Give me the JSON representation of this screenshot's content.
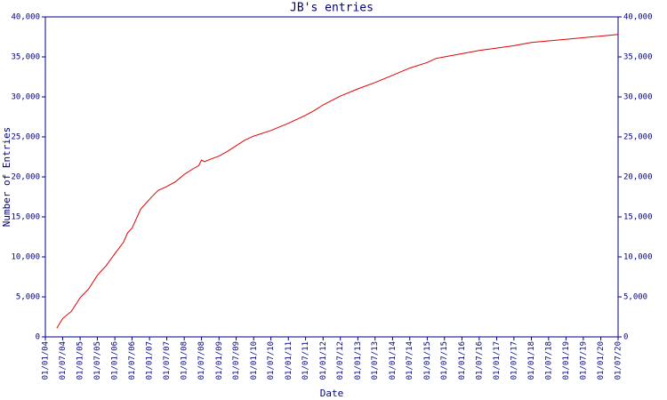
{
  "chart_data": {
    "type": "line",
    "title": "JB's entries",
    "xlabel": "Date",
    "ylabel": "Number of Entries",
    "axis_color": "#000080",
    "series": [
      {
        "name": "JB's entries",
        "color": "#e00000",
        "x": [
          "2004-05-01",
          "2004-07-01",
          "2004-10-01",
          "2005-01-01",
          "2005-04-01",
          "2005-07-01",
          "2005-10-01",
          "2006-01-01",
          "2006-04-01",
          "2006-05-15",
          "2006-07-01",
          "2006-10-01",
          "2007-01-01",
          "2007-04-01",
          "2007-07-01",
          "2007-10-01",
          "2008-01-01",
          "2008-04-01",
          "2008-06-01",
          "2008-07-01",
          "2008-08-01",
          "2008-10-01",
          "2009-01-01",
          "2009-04-01",
          "2009-07-01",
          "2009-10-01",
          "2010-01-01",
          "2010-07-01",
          "2011-01-01",
          "2011-07-01",
          "2011-10-01",
          "2012-01-01",
          "2012-07-01",
          "2013-01-01",
          "2013-07-01",
          "2014-01-01",
          "2014-07-01",
          "2015-01-01",
          "2015-04-01",
          "2015-07-01",
          "2016-01-01",
          "2016-07-01",
          "2017-01-01",
          "2017-07-01",
          "2018-01-01",
          "2018-07-01",
          "2019-01-01",
          "2019-07-01",
          "2020-01-01",
          "2020-07-01"
        ],
        "values": [
          1100,
          2300,
          3200,
          4900,
          6000,
          7700,
          8900,
          10400,
          11800,
          13000,
          13600,
          16000,
          17200,
          18300,
          18800,
          19400,
          20300,
          21000,
          21400,
          22100,
          21900,
          22200,
          22600,
          23200,
          23900,
          24600,
          25100,
          25800,
          26700,
          27700,
          28300,
          29000,
          30100,
          31000,
          31800,
          32700,
          33600,
          34300,
          34800,
          35000,
          35400,
          35800,
          36100,
          36400,
          36800,
          37000,
          37200,
          37400,
          37600,
          37800
        ]
      }
    ],
    "xlim": [
      "2004-01-01",
      "2020-07-01"
    ],
    "xticks": [
      {
        "value": "2004-01-01",
        "label": "01/01/04"
      },
      {
        "value": "2004-07-01",
        "label": "01/07/04"
      },
      {
        "value": "2005-01-01",
        "label": "01/01/05"
      },
      {
        "value": "2005-07-01",
        "label": "01/07/05"
      },
      {
        "value": "2006-01-01",
        "label": "01/01/06"
      },
      {
        "value": "2006-07-01",
        "label": "01/07/06"
      },
      {
        "value": "2007-01-01",
        "label": "01/01/07"
      },
      {
        "value": "2007-07-01",
        "label": "01/07/07"
      },
      {
        "value": "2008-01-01",
        "label": "01/01/08"
      },
      {
        "value": "2008-07-01",
        "label": "01/07/08"
      },
      {
        "value": "2009-01-01",
        "label": "01/01/09"
      },
      {
        "value": "2009-07-01",
        "label": "01/07/09"
      },
      {
        "value": "2010-01-01",
        "label": "01/01/10"
      },
      {
        "value": "2010-07-01",
        "label": "01/07/10"
      },
      {
        "value": "2011-01-01",
        "label": "01/01/11"
      },
      {
        "value": "2011-07-01",
        "label": "01/07/11"
      },
      {
        "value": "2012-01-01",
        "label": "01/01/12"
      },
      {
        "value": "2012-07-01",
        "label": "01/07/12"
      },
      {
        "value": "2013-01-01",
        "label": "01/01/13"
      },
      {
        "value": "2013-07-01",
        "label": "01/07/13"
      },
      {
        "value": "2014-01-01",
        "label": "01/01/14"
      },
      {
        "value": "2014-07-01",
        "label": "01/07/14"
      },
      {
        "value": "2015-01-01",
        "label": "01/01/15"
      },
      {
        "value": "2015-07-01",
        "label": "01/07/15"
      },
      {
        "value": "2016-01-01",
        "label": "01/01/16"
      },
      {
        "value": "2016-07-01",
        "label": "01/07/16"
      },
      {
        "value": "2017-01-01",
        "label": "01/01/17"
      },
      {
        "value": "2017-07-01",
        "label": "01/07/17"
      },
      {
        "value": "2018-01-01",
        "label": "01/01/18"
      },
      {
        "value": "2018-07-01",
        "label": "01/07/18"
      },
      {
        "value": "2019-01-01",
        "label": "01/01/19"
      },
      {
        "value": "2019-07-01",
        "label": "01/07/19"
      },
      {
        "value": "2020-01-01",
        "label": "01/01/20"
      },
      {
        "value": "2020-07-01",
        "label": "01/07/20"
      }
    ],
    "ylim": [
      0,
      40000
    ],
    "yticks": [
      0,
      {
        "value": 5000,
        "label": "5,000"
      },
      {
        "value": 10000,
        "label": "10,000"
      },
      {
        "value": 15000,
        "label": "15,000"
      },
      {
        "value": 20000,
        "label": "20,000"
      },
      {
        "value": 25000,
        "label": "25,000"
      },
      {
        "value": 30000,
        "label": "30,000"
      },
      {
        "value": 35000,
        "label": "35,000"
      },
      {
        "value": 40000,
        "label": "40,000"
      }
    ],
    "y2lim": [
      0,
      40000
    ],
    "y2ticks": [
      0,
      {
        "value": 5000,
        "label": "5,000"
      },
      {
        "value": 10000,
        "label": "10,000"
      },
      {
        "value": 15000,
        "label": "15,000"
      },
      {
        "value": 20000,
        "label": "20,000"
      },
      {
        "value": 25000,
        "label": "25,000"
      },
      {
        "value": 30000,
        "label": "30,000"
      },
      {
        "value": 35000,
        "label": "35,000"
      },
      {
        "value": 40000,
        "label": "40,000"
      }
    ],
    "grid": false
  }
}
